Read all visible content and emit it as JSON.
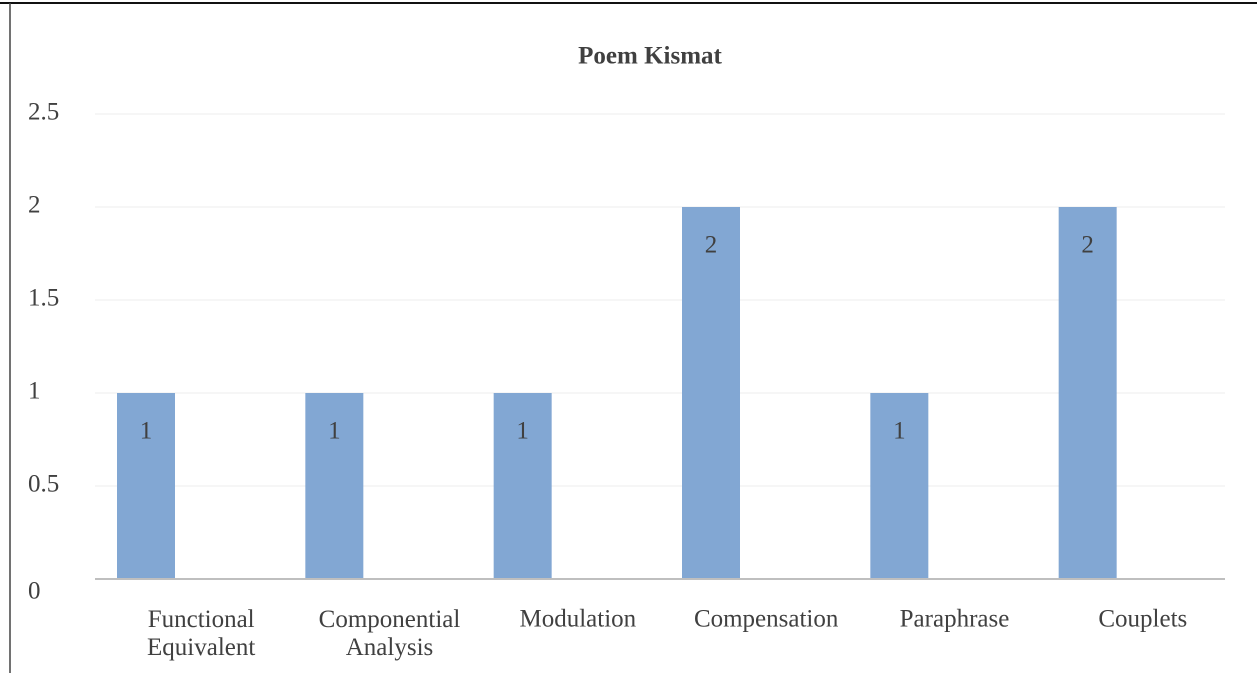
{
  "chart_data": {
    "type": "bar",
    "title": "Poem Kismat",
    "categories": [
      "Functional Equivalent",
      "Componential Analysis",
      "Modulation",
      "Compensation",
      "Paraphrase",
      "Couplets"
    ],
    "values": [
      1,
      1,
      1,
      2,
      1,
      2
    ],
    "color": "#82a7d3",
    "ylim": [
      0,
      2.5
    ],
    "yticks": [
      0,
      0.5,
      1,
      1.5,
      2,
      2.5
    ],
    "grid": true,
    "data_labels": true
  }
}
